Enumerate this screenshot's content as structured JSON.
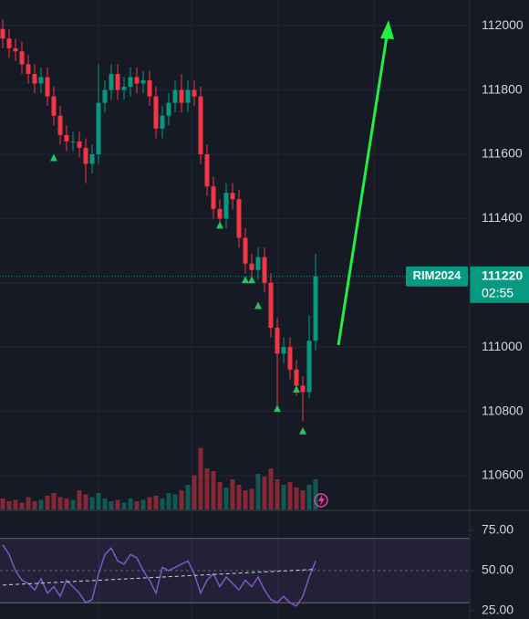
{
  "chart_data": [
    {
      "type": "candlestick",
      "symbol": "RIM2024",
      "open": [
        111990,
        111960,
        111930,
        111920,
        111880,
        111850,
        111820,
        111840,
        111780,
        111720,
        111660,
        111640,
        111640,
        111620,
        111570,
        111600,
        111760,
        111800,
        111850,
        111800,
        111810,
        111840,
        111820,
        111830,
        111780,
        111680,
        111720,
        111760,
        111800,
        111760,
        111800,
        111780,
        111600,
        111500,
        111430,
        111400,
        111480,
        111460,
        111340,
        111260,
        111240,
        111280,
        111200,
        111060,
        110980,
        111000,
        110930,
        110880,
        110860,
        111020
      ],
      "high": [
        112020,
        111990,
        111960,
        111950,
        111910,
        111880,
        111870,
        111870,
        111810,
        111750,
        111690,
        111670,
        111670,
        111650,
        111630,
        111880,
        111830,
        111880,
        111880,
        111840,
        111870,
        111870,
        111860,
        111860,
        111810,
        111750,
        111790,
        111830,
        111850,
        111830,
        111830,
        111810,
        111630,
        111530,
        111460,
        111510,
        111510,
        111490,
        111370,
        111290,
        111310,
        111310,
        111230,
        111090,
        111030,
        111030,
        110960,
        110910,
        111100,
        111290
      ],
      "low": [
        111930,
        111900,
        111890,
        111850,
        111820,
        111790,
        111790,
        111750,
        111690,
        111630,
        111610,
        111610,
        111590,
        111510,
        111540,
        111570,
        111730,
        111770,
        111770,
        111770,
        111780,
        111790,
        111790,
        111750,
        111650,
        111650,
        111690,
        111730,
        111730,
        111730,
        111750,
        111570,
        111470,
        111400,
        111370,
        111370,
        111430,
        111310,
        111230,
        111210,
        111210,
        111170,
        111030,
        110820,
        110950,
        110900,
        110850,
        110770,
        110840,
        110990
      ],
      "close": [
        111960,
        111930,
        111920,
        111880,
        111850,
        111820,
        111840,
        111780,
        111720,
        111660,
        111640,
        111640,
        111620,
        111570,
        111600,
        111760,
        111800,
        111850,
        111800,
        111810,
        111840,
        111820,
        111830,
        111780,
        111680,
        111720,
        111760,
        111800,
        111760,
        111800,
        111780,
        111600,
        111500,
        111430,
        111400,
        111480,
        111460,
        111340,
        111260,
        111240,
        111280,
        111200,
        111060,
        110980,
        111000,
        110930,
        110880,
        110860,
        111020,
        111220
      ],
      "up_color": "#089981",
      "down_color": "#f23645",
      "ylim": [
        110495,
        112080
      ],
      "yticks": [
        110600,
        110800,
        111000,
        111200,
        111400,
        111600,
        111800,
        112000
      ],
      "grid": true,
      "last_price": 111220,
      "countdown": "02:55",
      "signals": {
        "index": [
          8,
          34,
          38,
          39,
          40,
          43,
          46,
          47
        ],
        "values": [
          111590,
          111380,
          111210,
          111210,
          111130,
          110810,
          110870,
          110740
        ],
        "color": "#089981"
      }
    },
    {
      "type": "bar",
      "values": [
        8,
        6,
        7,
        5,
        9,
        6,
        7,
        10,
        12,
        9,
        8,
        7,
        14,
        11,
        9,
        12,
        8,
        6,
        7,
        5,
        8,
        6,
        7,
        9,
        10,
        8,
        12,
        11,
        14,
        18,
        25,
        45,
        30,
        28,
        20,
        16,
        22,
        18,
        14,
        15,
        26,
        24,
        30,
        22,
        18,
        20,
        16,
        14,
        18,
        22
      ],
      "ylim": [
        0,
        100
      ]
    },
    {
      "type": "line",
      "ylim": [
        19.9,
        86.9
      ],
      "yticks": [
        {
          "value": 25,
          "label": "25.00"
        },
        {
          "value": 50,
          "label": "50.00"
        },
        {
          "value": 75,
          "label": "75.00"
        }
      ],
      "bands": [
        30,
        70
      ],
      "midline": 50,
      "series": [
        {
          "color": "#7e57c2",
          "values": [
            66,
            60,
            50,
            44,
            42,
            38,
            45,
            36,
            40,
            34,
            44,
            40,
            36,
            30,
            32,
            48,
            60,
            64,
            56,
            54,
            60,
            58,
            50,
            44,
            36,
            52,
            50,
            52,
            54,
            56,
            48,
            36,
            44,
            48,
            40,
            46,
            42,
            38,
            44,
            40,
            46,
            38,
            32,
            30,
            34,
            30,
            28,
            34,
            46,
            56
          ]
        },
        {
          "color": "#d1d4dc",
          "dashed": true,
          "values": [
            41,
            41.2,
            41.4,
            41.6,
            41.8,
            42,
            42.2,
            42.4,
            42.6,
            42.8,
            43,
            43.2,
            43.4,
            43.6,
            43.8,
            44,
            44.2,
            44.4,
            44.6,
            44.8,
            45,
            45.2,
            45.4,
            45.6,
            45.8,
            46,
            46.2,
            46.4,
            46.6,
            46.8,
            47,
            47.2,
            47.4,
            47.6,
            47.8,
            48,
            48.2,
            48.4,
            48.6,
            48.8,
            49,
            49.2,
            49.4,
            49.6,
            49.8,
            50,
            50.2,
            50.4,
            50.6,
            50.8
          ]
        }
      ]
    }
  ]
}
